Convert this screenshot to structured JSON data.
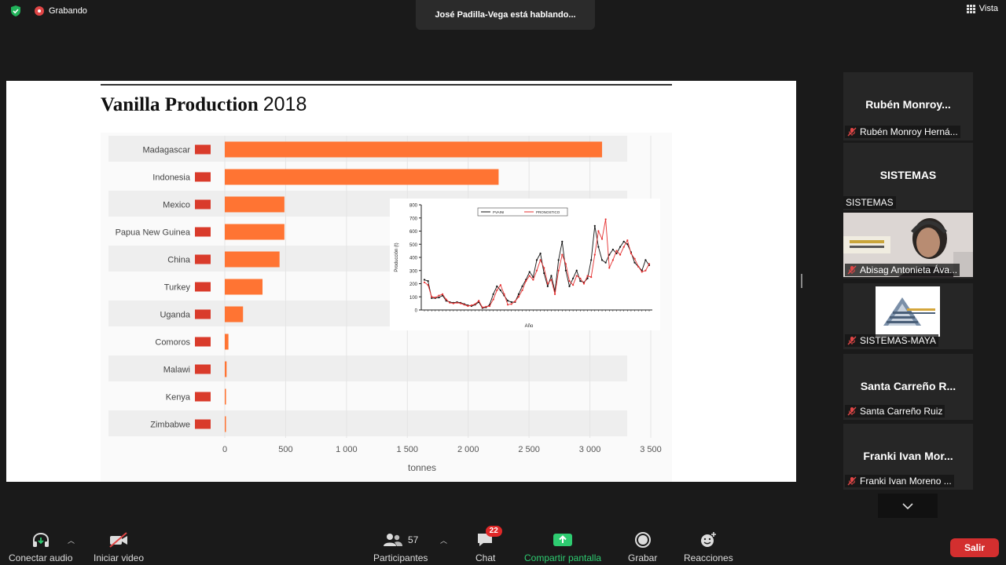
{
  "top": {
    "recording_label": "Grabando",
    "speaking_text": "José Padilla-Vega está hablando...",
    "view_label": "Vista"
  },
  "slide": {
    "title": "Vanilla Production",
    "year": "2018"
  },
  "chart_data": [
    {
      "type": "bar",
      "orientation": "horizontal",
      "title": "Vanilla Production 2018",
      "xlabel": "tonnes",
      "xlim": [
        0,
        3500
      ],
      "xticks": [
        "0",
        "500",
        "1 000",
        "1 500",
        "2 000",
        "2 500",
        "3 000",
        "3 500"
      ],
      "grid": true,
      "bar_color": "#ff7433",
      "categories": [
        "Madagascar",
        "Indonesia",
        "Mexico",
        "Papua New Guinea",
        "China",
        "Turkey",
        "Uganda",
        "Comoros",
        "Malawi",
        "Kenya",
        "Zimbabwe"
      ],
      "values": [
        3100,
        2250,
        490,
        490,
        450,
        310,
        150,
        30,
        15,
        10,
        5
      ]
    },
    {
      "type": "line",
      "ylabel": "Producción (t)",
      "xlabel": "Año",
      "ylim": [
        0,
        800
      ],
      "yticks": [
        "0",
        "100",
        "200",
        "300",
        "400",
        "500",
        "600",
        "700",
        "800"
      ],
      "grid": false,
      "legend_position": "top",
      "series": [
        {
          "name": "PVAINI",
          "color": "#111111",
          "values": [
            230,
            220,
            90,
            90,
            95,
            110,
            70,
            60,
            55,
            60,
            55,
            45,
            35,
            30,
            40,
            60,
            15,
            20,
            40,
            120,
            180,
            150,
            110,
            70,
            60,
            60,
            120,
            180,
            230,
            290,
            250,
            380,
            430,
            280,
            180,
            260,
            140,
            380,
            520,
            300,
            180,
            240,
            300,
            220,
            210,
            240,
            380,
            640,
            480,
            380,
            360,
            420,
            460,
            430,
            480,
            520,
            500,
            440,
            360,
            330,
            300,
            380,
            340
          ]
        },
        {
          "name": "PRONOSTICO",
          "color": "#e53030",
          "values": [
            210,
            190,
            100,
            95,
            110,
            120,
            80,
            55,
            50,
            55,
            50,
            40,
            30,
            35,
            45,
            70,
            20,
            25,
            30,
            80,
            150,
            190,
            120,
            40,
            45,
            65,
            100,
            150,
            220,
            260,
            230,
            300,
            380,
            320,
            200,
            230,
            120,
            300,
            420,
            350,
            220,
            190,
            260,
            240,
            200,
            260,
            250,
            420,
            600,
            540,
            690,
            320,
            380,
            450,
            420,
            480,
            530,
            430,
            390,
            330,
            290,
            300,
            350
          ]
        }
      ]
    }
  ],
  "sidebar": {
    "tiles": [
      {
        "name": "Rubén Monroy...",
        "label": "Rubén Monroy Herná..."
      },
      {
        "name": "SISTEMAS",
        "label": "SISTEMAS"
      },
      {
        "name": "",
        "label": "Abisag Antonieta Áva..."
      },
      {
        "name": "",
        "label": "SISTEMAS-MAYA"
      },
      {
        "name": "Santa Carreño R...",
        "label": "Santa Carreño Ruiz"
      },
      {
        "name": "Franki Ivan Mor...",
        "label": "Franki Ivan Moreno ..."
      }
    ]
  },
  "toolbar": {
    "audio_label": "Conectar audio",
    "video_label": "Iniciar video",
    "participants_count": "57",
    "participants_label": "Participantes",
    "chat_badge": "22",
    "chat_label": "Chat",
    "share_label": "Compartir pantalla",
    "record_label": "Grabar",
    "reactions_label": "Reacciones",
    "leave_label": "Salir"
  }
}
